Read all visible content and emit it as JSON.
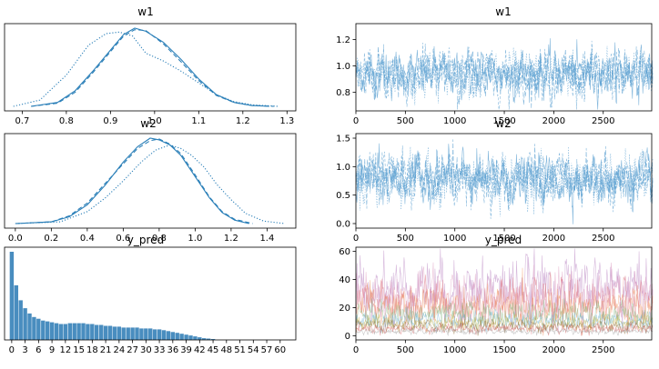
{
  "colors": {
    "kde": "#2a7fb8",
    "trace": "#5a9fd0",
    "hist": "#2979b4",
    "pred_palette": [
      "#b77fc0",
      "#d98fb8",
      "#e0737a",
      "#ee8f5a",
      "#7fb37a",
      "#6aaed6",
      "#c9b040",
      "#8c6d3a",
      "#d45a5a",
      "#9c9c9c"
    ]
  },
  "chart_data": [
    {
      "type": "line",
      "panel": "kde",
      "title": "w1",
      "xlim": [
        0.66,
        1.32
      ],
      "xticks": [
        "0.7",
        "0.8",
        "0.9",
        "1.0",
        "1.1",
        "1.2",
        "1.3"
      ],
      "xtick_values": [
        0.7,
        0.8,
        0.9,
        1.0,
        1.1,
        1.2,
        1.3
      ],
      "series": [
        {
          "style": "solid",
          "x": [
            0.72,
            0.78,
            0.82,
            0.86,
            0.9,
            0.93,
            0.955,
            0.98,
            1.02,
            1.06,
            1.1,
            1.14,
            1.18,
            1.22,
            1.26
          ],
          "y": [
            0.0,
            0.05,
            0.2,
            0.45,
            0.72,
            0.92,
            1.0,
            0.96,
            0.82,
            0.6,
            0.35,
            0.15,
            0.05,
            0.01,
            0.0
          ]
        },
        {
          "style": "dashed",
          "x": [
            0.72,
            0.78,
            0.82,
            0.86,
            0.9,
            0.93,
            0.955,
            0.98,
            1.02,
            1.06,
            1.1,
            1.14,
            1.18,
            1.22,
            1.27
          ],
          "y": [
            0.0,
            0.04,
            0.18,
            0.43,
            0.7,
            0.9,
            0.98,
            0.97,
            0.8,
            0.57,
            0.33,
            0.14,
            0.05,
            0.01,
            0.0
          ]
        },
        {
          "style": "dotted",
          "x": [
            0.68,
            0.74,
            0.8,
            0.85,
            0.89,
            0.92,
            0.95,
            0.98,
            1.02,
            1.06,
            1.1,
            1.14,
            1.18,
            1.22,
            1.28
          ],
          "y": [
            0.0,
            0.08,
            0.4,
            0.78,
            0.93,
            0.95,
            0.9,
            0.68,
            0.58,
            0.45,
            0.3,
            0.15,
            0.06,
            0.02,
            0.0
          ]
        }
      ]
    },
    {
      "type": "line",
      "panel": "trace",
      "title": "w1",
      "xlim": [
        0,
        2990
      ],
      "ylim": [
        0.66,
        1.32
      ],
      "xticks": [
        "0",
        "500",
        "1000",
        "1500",
        "2000",
        "2500"
      ],
      "xtick_values": [
        0,
        500,
        1000,
        1500,
        2000,
        2500
      ],
      "yticks": [
        "0.8",
        "1.0",
        "1.2"
      ],
      "ytick_values": [
        0.8,
        1.0,
        1.2
      ],
      "n_draws": 3000,
      "mean": 0.94,
      "sd": 0.085,
      "chains": 4
    },
    {
      "type": "line",
      "panel": "kde",
      "title": "w2",
      "xlim": [
        -0.06,
        1.56
      ],
      "xticks": [
        "0.0",
        "0.2",
        "0.4",
        "0.6",
        "0.8",
        "1.0",
        "1.2",
        "1.4"
      ],
      "xtick_values": [
        0.0,
        0.2,
        0.4,
        0.6,
        0.8,
        1.0,
        1.2,
        1.4
      ],
      "series": [
        {
          "style": "solid",
          "x": [
            0.0,
            0.2,
            0.3,
            0.4,
            0.5,
            0.6,
            0.68,
            0.75,
            0.8,
            0.86,
            0.92,
            1.0,
            1.08,
            1.15,
            1.22,
            1.3
          ],
          "y": [
            0.0,
            0.02,
            0.08,
            0.22,
            0.45,
            0.72,
            0.9,
            1.0,
            0.98,
            0.92,
            0.8,
            0.55,
            0.3,
            0.13,
            0.04,
            0.0
          ]
        },
        {
          "style": "dashed",
          "x": [
            0.0,
            0.2,
            0.3,
            0.4,
            0.5,
            0.6,
            0.68,
            0.75,
            0.8,
            0.86,
            0.92,
            1.0,
            1.08,
            1.15,
            1.22,
            1.32
          ],
          "y": [
            0.0,
            0.02,
            0.09,
            0.24,
            0.47,
            0.7,
            0.88,
            0.97,
            0.99,
            0.93,
            0.82,
            0.57,
            0.31,
            0.14,
            0.05,
            0.0
          ]
        },
        {
          "style": "dotted",
          "x": [
            0.0,
            0.25,
            0.4,
            0.5,
            0.6,
            0.7,
            0.78,
            0.86,
            0.92,
            0.98,
            1.05,
            1.12,
            1.2,
            1.28,
            1.38,
            1.5
          ],
          "y": [
            0.0,
            0.02,
            0.14,
            0.3,
            0.5,
            0.72,
            0.86,
            0.92,
            0.88,
            0.8,
            0.66,
            0.46,
            0.28,
            0.12,
            0.03,
            0.0
          ]
        }
      ]
    },
    {
      "type": "line",
      "panel": "trace",
      "title": "w2",
      "xlim": [
        0,
        2990
      ],
      "ylim": [
        -0.08,
        1.58
      ],
      "xticks": [
        "0",
        "500",
        "1000",
        "1500",
        "2000",
        "2500"
      ],
      "xtick_values": [
        0,
        500,
        1000,
        1500,
        2000,
        2500
      ],
      "yticks": [
        "0.0",
        "0.5",
        "1.0",
        "1.5"
      ],
      "ytick_values": [
        0.0,
        0.5,
        1.0,
        1.5
      ],
      "n_draws": 3000,
      "mean": 0.78,
      "sd": 0.21,
      "chains": 4
    },
    {
      "type": "bar",
      "panel": "hist",
      "title": "y_pred",
      "xlim": [
        -1.6,
        63.5
      ],
      "xticks": [
        "0",
        "3",
        "6",
        "9",
        "12",
        "15",
        "18",
        "21",
        "24",
        "27",
        "30",
        "33",
        "36",
        "39",
        "42",
        "45",
        "48",
        "51",
        "54",
        "57",
        "60"
      ],
      "xtick_values": [
        0,
        3,
        6,
        9,
        12,
        15,
        18,
        21,
        24,
        27,
        30,
        33,
        36,
        39,
        42,
        45,
        48,
        51,
        54,
        57,
        60
      ],
      "categories": [
        0,
        1,
        2,
        3,
        4,
        5,
        6,
        7,
        8,
        9,
        10,
        11,
        12,
        13,
        14,
        15,
        16,
        17,
        18,
        19,
        20,
        21,
        22,
        23,
        24,
        25,
        26,
        27,
        28,
        29,
        30,
        31,
        32,
        33,
        34,
        35,
        36,
        37,
        38,
        39,
        40,
        41,
        42,
        43,
        44,
        45
      ],
      "values": [
        1.0,
        0.62,
        0.45,
        0.36,
        0.3,
        0.26,
        0.24,
        0.22,
        0.21,
        0.2,
        0.19,
        0.18,
        0.18,
        0.19,
        0.19,
        0.19,
        0.19,
        0.18,
        0.18,
        0.17,
        0.17,
        0.16,
        0.16,
        0.15,
        0.15,
        0.14,
        0.14,
        0.14,
        0.14,
        0.13,
        0.13,
        0.13,
        0.12,
        0.12,
        0.11,
        0.1,
        0.09,
        0.08,
        0.07,
        0.06,
        0.05,
        0.04,
        0.03,
        0.02,
        0.015,
        0.01
      ]
    },
    {
      "type": "line",
      "panel": "trace-multi",
      "title": "y_pred",
      "xlim": [
        0,
        2990
      ],
      "ylim": [
        -3,
        63
      ],
      "xticks": [
        "0",
        "500",
        "1000",
        "1500",
        "2000",
        "2500"
      ],
      "xtick_values": [
        0,
        500,
        1000,
        1500,
        2000,
        2500
      ],
      "yticks": [
        "0",
        "20",
        "40",
        "60"
      ],
      "ytick_values": [
        0,
        20,
        40,
        60
      ],
      "n_draws": 3000,
      "series_levels": [
        {
          "mean": 35,
          "sd": 10
        },
        {
          "mean": 28,
          "sd": 8
        },
        {
          "mean": 24,
          "sd": 7
        },
        {
          "mean": 20,
          "sd": 6
        },
        {
          "mean": 15,
          "sd": 4
        },
        {
          "mean": 11,
          "sd": 3
        },
        {
          "mean": 9,
          "sd": 2.5
        },
        {
          "mean": 7,
          "sd": 2
        },
        {
          "mean": 5,
          "sd": 1.5
        },
        {
          "mean": 3,
          "sd": 1
        }
      ]
    }
  ]
}
